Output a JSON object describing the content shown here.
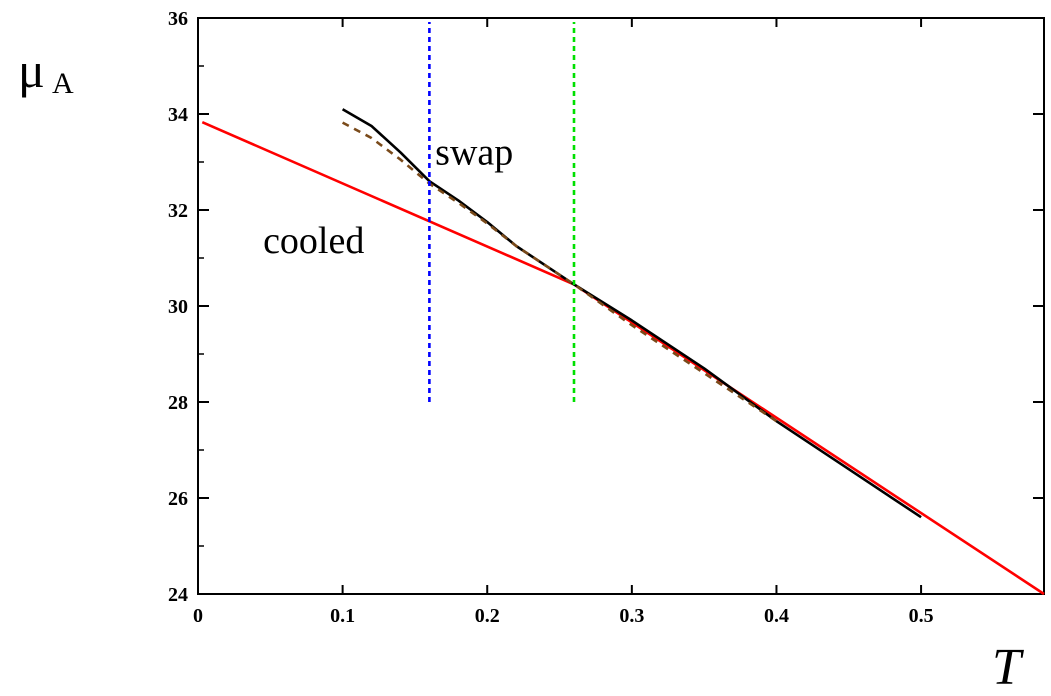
{
  "chart_data": {
    "type": "line",
    "title": "",
    "xlabel": "T",
    "ylabel": {
      "main": "μ",
      "sub": "A"
    },
    "xlim": [
      0,
      0.585
    ],
    "ylim": [
      24,
      36
    ],
    "x_ticks": [
      0,
      0.1,
      0.2,
      0.3,
      0.4,
      0.5
    ],
    "x_tick_labels": [
      "0",
      "0.1",
      "0.2",
      "0.3",
      "0.4",
      "0.5"
    ],
    "y_ticks": [
      24,
      26,
      28,
      30,
      32,
      34,
      36
    ],
    "y_tick_labels": [
      "24",
      "26",
      "28",
      "30",
      "32",
      "34",
      "36"
    ],
    "grid": false,
    "series": [
      {
        "color": "#ff0000",
        "style": "solid",
        "x": [
          0.003,
          0.26,
          0.585
        ],
        "y": [
          33.83,
          30.45,
          24.0
        ]
      },
      {
        "color": "#000000",
        "style": "solid",
        "x": [
          0.1,
          0.12,
          0.14,
          0.16,
          0.18,
          0.2,
          0.22,
          0.24,
          0.26,
          0.3,
          0.35,
          0.4,
          0.45,
          0.5
        ],
        "y": [
          34.1,
          33.75,
          33.2,
          32.6,
          32.2,
          31.75,
          31.25,
          30.85,
          30.45,
          29.7,
          28.7,
          27.6,
          26.6,
          25.6
        ]
      },
      {
        "color": "#7a4a1a",
        "style": "dashed",
        "x": [
          0.1,
          0.12,
          0.14,
          0.16,
          0.18,
          0.2,
          0.22,
          0.24,
          0.26,
          0.3,
          0.35,
          0.4
        ],
        "y": [
          33.82,
          33.5,
          33.05,
          32.55,
          32.15,
          31.72,
          31.25,
          30.85,
          30.45,
          29.6,
          28.6,
          27.6
        ]
      }
    ],
    "vlines": [
      {
        "x": 0.16,
        "y_from": 28,
        "y_to": 36,
        "color": "#0000ff",
        "style": "dashed"
      },
      {
        "x": 0.26,
        "y_from": 28,
        "y_to": 36,
        "color": "#00e000",
        "style": "dashed"
      }
    ],
    "annotations": [
      {
        "text": "swap",
        "x": 0.164,
        "y": 32.95
      },
      {
        "text": "cooled",
        "x": 0.045,
        "y": 31.1
      }
    ]
  }
}
